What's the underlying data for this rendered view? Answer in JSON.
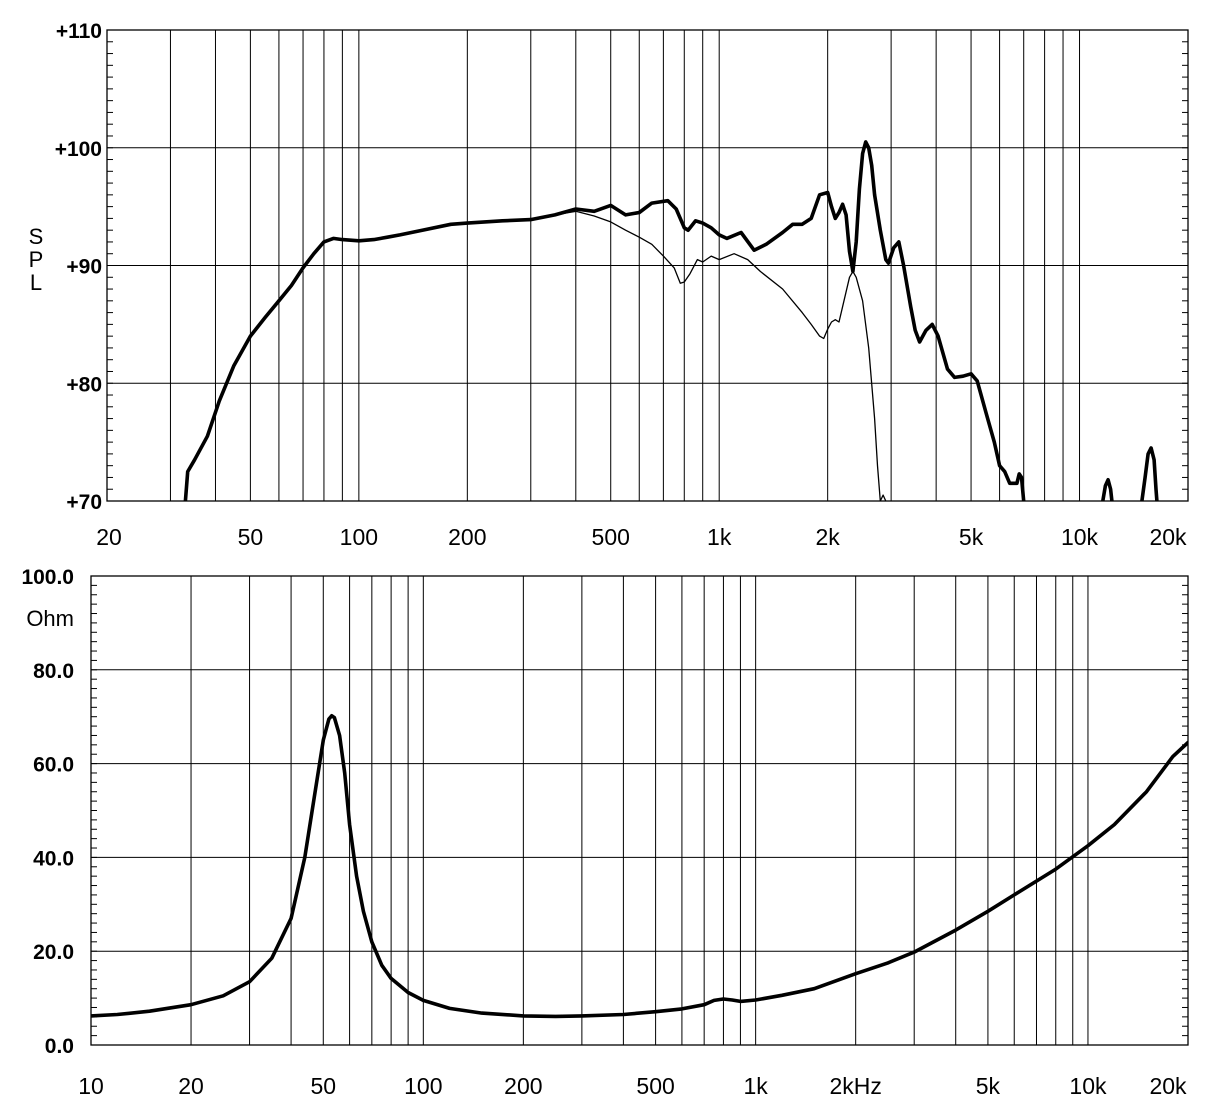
{
  "chart_data": [
    {
      "type": "line",
      "ylabel": "SPL",
      "ylim": [
        70,
        110
      ],
      "xlim": [
        20,
        20000
      ],
      "x_scale": "log",
      "grid": true,
      "x_tick_labels": [
        {
          "value": 20,
          "label": "20"
        },
        {
          "value": 50,
          "label": "50"
        },
        {
          "value": 100,
          "label": "100"
        },
        {
          "value": 200,
          "label": "200"
        },
        {
          "value": 500,
          "label": "500"
        },
        {
          "value": 1000,
          "label": "1k"
        },
        {
          "value": 2000,
          "label": "2k"
        },
        {
          "value": 5000,
          "label": "5k"
        },
        {
          "value": 10000,
          "label": "10k"
        },
        {
          "value": 20000,
          "label": "20k"
        }
      ],
      "y_tick_labels": [
        {
          "value": 110,
          "label": "+110"
        },
        {
          "value": 100,
          "label": "+100"
        },
        {
          "value": 90,
          "label": "+90"
        },
        {
          "value": 80,
          "label": "+80"
        },
        {
          "value": 70,
          "label": "+70"
        }
      ],
      "series": [
        {
          "style": "thick",
          "segments": [
            [
              [
                33,
                70
              ],
              [
                33.5,
                72.5
              ],
              [
                35,
                73.5
              ],
              [
                38,
                75.5
              ],
              [
                41,
                78.5
              ],
              [
                45,
                81.5
              ],
              [
                50,
                84
              ],
              [
                55,
                85.6
              ],
              [
                60,
                87
              ],
              [
                65,
                88.3
              ],
              [
                70,
                89.8
              ],
              [
                75,
                91
              ],
              [
                80,
                92
              ],
              [
                85,
                92.3
              ],
              [
                90,
                92.2
              ],
              [
                100,
                92.1
              ],
              [
                110,
                92.2
              ],
              [
                120,
                92.4
              ],
              [
                130,
                92.6
              ],
              [
                150,
                93
              ],
              [
                180,
                93.5
              ],
              [
                200,
                93.6
              ],
              [
                250,
                93.8
              ],
              [
                300,
                93.9
              ],
              [
                350,
                94.3
              ],
              [
                400,
                94.8
              ],
              [
                450,
                94.6
              ],
              [
                500,
                95.1
              ],
              [
                550,
                94.3
              ],
              [
                600,
                94.5
              ],
              [
                650,
                95.3
              ],
              [
                720,
                95.5
              ],
              [
                760,
                94.8
              ],
              [
                800,
                93.2
              ],
              [
                820,
                93
              ],
              [
                860,
                93.8
              ],
              [
                900,
                93.6
              ],
              [
                950,
                93.2
              ],
              [
                1000,
                92.6
              ],
              [
                1050,
                92.3
              ],
              [
                1150,
                92.8
              ],
              [
                1250,
                91.3
              ],
              [
                1350,
                91.8
              ],
              [
                1500,
                92.8
              ],
              [
                1600,
                93.5
              ],
              [
                1700,
                93.5
              ],
              [
                1800,
                94
              ],
              [
                1900,
                96
              ],
              [
                2000,
                96.2
              ],
              [
                2050,
                95
              ],
              [
                2100,
                94
              ],
              [
                2150,
                94.5
              ],
              [
                2200,
                95.2
              ],
              [
                2250,
                94.3
              ],
              [
                2300,
                91.2
              ],
              [
                2350,
                89.5
              ],
              [
                2400,
                92
              ],
              [
                2450,
                96.5
              ],
              [
                2500,
                99.5
              ],
              [
                2550,
                100.5
              ],
              [
                2600,
                100
              ],
              [
                2650,
                98.5
              ],
              [
                2700,
                96
              ],
              [
                2800,
                93
              ],
              [
                2900,
                90.5
              ],
              [
                2950,
                90.2
              ],
              [
                3050,
                91.5
              ],
              [
                3150,
                92
              ],
              [
                3250,
                90
              ],
              [
                3400,
                86.5
              ],
              [
                3500,
                84.5
              ],
              [
                3600,
                83.5
              ],
              [
                3750,
                84.5
              ],
              [
                3900,
                85
              ],
              [
                4050,
                84
              ],
              [
                4300,
                81.2
              ],
              [
                4500,
                80.5
              ],
              [
                4750,
                80.6
              ],
              [
                5000,
                80.8
              ],
              [
                5200,
                80.2
              ],
              [
                5500,
                77.5
              ],
              [
                5800,
                75
              ],
              [
                6000,
                73
              ],
              [
                6200,
                72.5
              ],
              [
                6400,
                71.5
              ],
              [
                6700,
                71.5
              ],
              [
                6800,
                72.3
              ],
              [
                6900,
                72
              ],
              [
                7000,
                70
              ]
            ],
            [
              [
                11600,
                70
              ],
              [
                11800,
                71.3
              ],
              [
                12000,
                71.8
              ],
              [
                12200,
                71
              ],
              [
                12300,
                70
              ]
            ],
            [
              [
                14900,
                70
              ],
              [
                15200,
                72
              ],
              [
                15500,
                74
              ],
              [
                15800,
                74.5
              ],
              [
                16100,
                73.5
              ],
              [
                16300,
                71
              ],
              [
                16400,
                70
              ]
            ]
          ]
        },
        {
          "style": "thin",
          "segments": [
            [
              [
                350,
                94.3
              ],
              [
                400,
                94.6
              ],
              [
                450,
                94.2
              ],
              [
                500,
                93.7
              ],
              [
                550,
                93
              ],
              [
                600,
                92.4
              ],
              [
                650,
                91.8
              ],
              [
                700,
                90.8
              ],
              [
                750,
                89.8
              ],
              [
                780,
                88.5
              ],
              [
                800,
                88.6
              ],
              [
                830,
                89.3
              ],
              [
                870,
                90.5
              ],
              [
                900,
                90.3
              ],
              [
                950,
                90.8
              ],
              [
                1000,
                90.5
              ],
              [
                1100,
                91
              ],
              [
                1200,
                90.5
              ],
              [
                1300,
                89.5
              ],
              [
                1500,
                88
              ],
              [
                1700,
                86
              ],
              [
                1800,
                85
              ],
              [
                1900,
                84
              ],
              [
                1950,
                83.8
              ],
              [
                2000,
                84.6
              ],
              [
                2050,
                85.2
              ],
              [
                2100,
                85.4
              ],
              [
                2150,
                85.2
              ],
              [
                2200,
                86.5
              ],
              [
                2300,
                89
              ],
              [
                2350,
                89.5
              ],
              [
                2400,
                89
              ],
              [
                2500,
                87
              ],
              [
                2600,
                83
              ],
              [
                2700,
                77
              ],
              [
                2750,
                73
              ],
              [
                2800,
                70
              ],
              [
                2850,
                70.5
              ],
              [
                2900,
                70
              ]
            ]
          ]
        }
      ]
    },
    {
      "type": "line",
      "ylabel": "Ohm",
      "ylim": [
        0,
        100
      ],
      "xlim": [
        10,
        20000
      ],
      "x_scale": "log",
      "grid": true,
      "x_tick_labels": [
        {
          "value": 10,
          "label": "10"
        },
        {
          "value": 20,
          "label": "20"
        },
        {
          "value": 50,
          "label": "50"
        },
        {
          "value": 100,
          "label": "100"
        },
        {
          "value": 200,
          "label": "200"
        },
        {
          "value": 500,
          "label": "500"
        },
        {
          "value": 1000,
          "label": "1k"
        },
        {
          "value": 2000,
          "label": "2kHz"
        },
        {
          "value": 5000,
          "label": "5k"
        },
        {
          "value": 10000,
          "label": "10k"
        },
        {
          "value": 20000,
          "label": "20k"
        }
      ],
      "y_tick_labels": [
        {
          "value": 100,
          "label": "100.0"
        },
        {
          "value": 80,
          "label": "80.0"
        },
        {
          "value": 60,
          "label": "60.0"
        },
        {
          "value": 40,
          "label": "40.0"
        },
        {
          "value": 20,
          "label": "20.0"
        },
        {
          "value": 0,
          "label": "0.0"
        }
      ],
      "series": [
        {
          "style": "thick",
          "segments": [
            [
              [
                10,
                6.2
              ],
              [
                12,
                6.5
              ],
              [
                15,
                7.2
              ],
              [
                20,
                8.6
              ],
              [
                25,
                10.5
              ],
              [
                30,
                13.5
              ],
              [
                35,
                18.5
              ],
              [
                40,
                27
              ],
              [
                44,
                40
              ],
              [
                47,
                53
              ],
              [
                50,
                65
              ],
              [
                52,
                69.5
              ],
              [
                53,
                70.2
              ],
              [
                54,
                69.8
              ],
              [
                56,
                66
              ],
              [
                58,
                58
              ],
              [
                60,
                47
              ],
              [
                63,
                36
              ],
              [
                66,
                28.5
              ],
              [
                70,
                22
              ],
              [
                75,
                17
              ],
              [
                80,
                14.2
              ],
              [
                90,
                11.2
              ],
              [
                100,
                9.5
              ],
              [
                120,
                7.8
              ],
              [
                150,
                6.8
              ],
              [
                200,
                6.2
              ],
              [
                250,
                6.1
              ],
              [
                300,
                6.2
              ],
              [
                400,
                6.5
              ],
              [
                500,
                7.1
              ],
              [
                600,
                7.7
              ],
              [
                700,
                8.6
              ],
              [
                750,
                9.5
              ],
              [
                800,
                9.8
              ],
              [
                850,
                9.6
              ],
              [
                900,
                9.3
              ],
              [
                1000,
                9.6
              ],
              [
                1200,
                10.6
              ],
              [
                1500,
                12
              ],
              [
                2000,
                15.2
              ],
              [
                2500,
                17.5
              ],
              [
                3000,
                19.8
              ],
              [
                4000,
                24.5
              ],
              [
                5000,
                28.5
              ],
              [
                6000,
                32
              ],
              [
                8000,
                37.5
              ],
              [
                10000,
                42.5
              ],
              [
                12000,
                47
              ],
              [
                15000,
                54
              ],
              [
                18000,
                61.5
              ],
              [
                20000,
                64.5
              ]
            ]
          ]
        }
      ]
    }
  ]
}
